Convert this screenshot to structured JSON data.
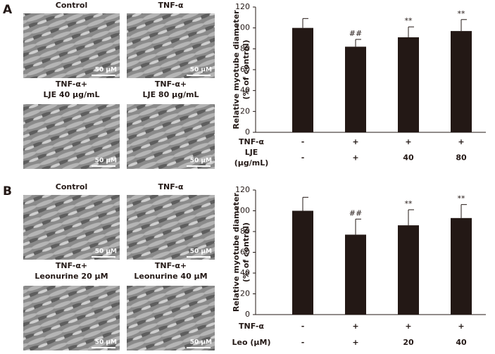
{
  "figure": {
    "panels": [
      {
        "letter": "A",
        "images": [
          {
            "caption": [
              "Control"
            ],
            "scale_bar": "50 μM"
          },
          {
            "caption": [
              "TNF-α"
            ],
            "scale_bar": "50 μM"
          },
          {
            "caption": [
              "TNF-α+",
              "LJE 40 μg/mL"
            ],
            "scale_bar": "50 μM"
          },
          {
            "caption": [
              "TNF-α+",
              "LJE 80 μg/mL"
            ],
            "scale_bar": "50 μM"
          }
        ]
      },
      {
        "letter": "B",
        "images": [
          {
            "caption": [
              "Control"
            ],
            "scale_bar": "50 μM"
          },
          {
            "caption": [
              "TNF-α"
            ],
            "scale_bar": "50 μM"
          },
          {
            "caption": [
              "TNF-α+",
              "Leonurine 20 μM"
            ],
            "scale_bar": "50 μM"
          },
          {
            "caption": [
              "TNF-α+",
              "Leonurine 40 μM"
            ],
            "scale_bar": "50 μM"
          }
        ]
      }
    ]
  },
  "chart_data": [
    {
      "type": "bar",
      "ylabel": [
        "Relative myotube diameter",
        "(% of control)"
      ],
      "color": "#231815",
      "values": [
        100,
        82,
        91,
        97
      ],
      "errors": [
        9,
        7,
        10,
        11
      ],
      "annotations": [
        null,
        "##",
        "**",
        "**"
      ],
      "ylim": [
        0,
        120
      ],
      "yticks": [
        0,
        20,
        40,
        60,
        80,
        100,
        120
      ],
      "condition_rows": [
        {
          "label": [
            "TNF-α"
          ],
          "values": [
            "-",
            "+",
            "+",
            "+"
          ]
        },
        {
          "label": [
            "LJE",
            "(μg/mL)"
          ],
          "values": [
            "-",
            "+",
            "40",
            "80"
          ]
        }
      ]
    },
    {
      "type": "bar",
      "ylabel": [
        "Relative myotube diameter",
        "(% of control)"
      ],
      "color": "#231815",
      "values": [
        100,
        77,
        86,
        93
      ],
      "errors": [
        13,
        15,
        15,
        13
      ],
      "annotations": [
        null,
        "##",
        "**",
        "**"
      ],
      "ylim": [
        0,
        120
      ],
      "yticks": [
        0,
        20,
        40,
        60,
        80,
        100,
        120
      ],
      "condition_rows": [
        {
          "label": [
            "TNF-α"
          ],
          "values": [
            "-",
            "+",
            "+",
            "+"
          ]
        },
        {
          "label": [
            "Leo (μM)"
          ],
          "values": [
            "-",
            "+",
            "20",
            "40"
          ]
        }
      ]
    }
  ]
}
